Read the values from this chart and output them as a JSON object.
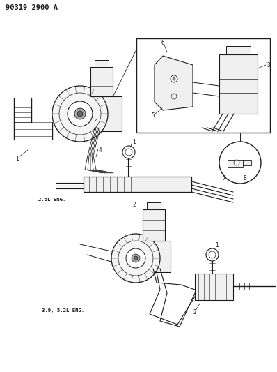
{
  "title_code": "90319 2900 A",
  "background_color": "#ffffff",
  "line_color": "#1a1a1a",
  "fig_width": 3.98,
  "fig_height": 5.33,
  "dpi": 100,
  "label_2_5L": "2.5L ENG.",
  "label_3_9L": "3.9, 5.2L ENG.",
  "title_fontsize": 7.5,
  "label_fontsize": 5.2,
  "num_fontsize": 5.5,
  "font_family": "DejaVu Sans"
}
